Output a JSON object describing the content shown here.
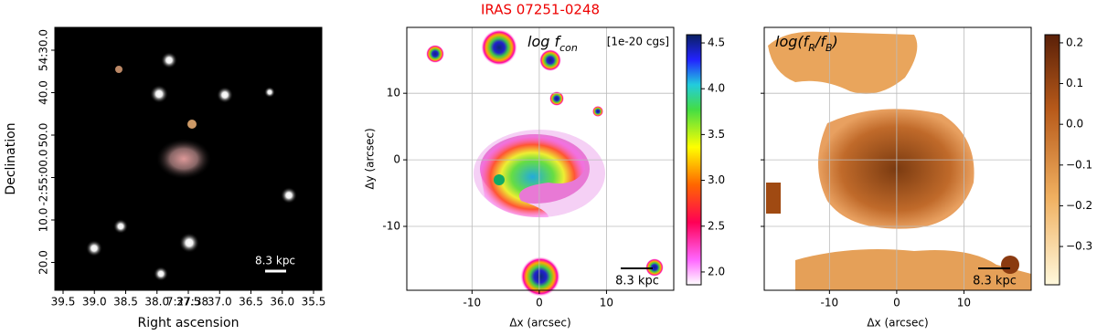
{
  "chart_data": [
    {
      "type": "image",
      "xlabel": "Right ascension",
      "ylabel": "Declination",
      "xticks": [
        "39.5",
        "39.0",
        "38.5",
        "38.0",
        "37.5",
        "37.0",
        "36.5",
        "36.0",
        "35.5"
      ],
      "xoffset_label": "7:27:38",
      "yticks": [
        "54:30.0",
        "40.0",
        "50.0",
        "-2:55:00.0",
        "10.0",
        "20.0"
      ],
      "scalebar_label": "8.3 kpc"
    },
    {
      "type": "map",
      "title": "IRAS 07251-0248",
      "xlabel": "Δx (arcsec)",
      "ylabel": "Δy (arcsec)",
      "xlim": [
        -19.7,
        20
      ],
      "ylim": [
        -19.6,
        19.9
      ],
      "xticks": [
        -10,
        0,
        10
      ],
      "yticks": [
        -10,
        0,
        10
      ],
      "grid": true,
      "annotation": "log f",
      "annotation_sub": "con",
      "unit_label": "[1e-20 cgs]",
      "scalebar_label": "8.3 kpc",
      "colormap": "gnuplot",
      "clim": [
        1.86,
        4.59
      ],
      "cticks": [
        {
          "value": 2,
          "label": "2.0"
        },
        2.5,
        {
          "value": 3,
          "label": "3.0"
        },
        3.5,
        {
          "value": 4,
          "label": "4.0"
        },
        4.5
      ]
    },
    {
      "type": "map",
      "xlabel": "Δx (arcsec)",
      "xlim": [
        -19.7,
        20
      ],
      "ylim": [
        -19.6,
        19.9
      ],
      "xticks": [
        -10,
        0,
        10
      ],
      "yticks": [
        -10,
        0,
        10
      ],
      "grid": true,
      "annotation": "log(f",
      "annotation_sub": "R",
      "annotation_mid": "/f",
      "annotation_sub2": "B",
      "annotation_end": ")",
      "scalebar_label": "8.3 kpc",
      "colormap": "copper",
      "clim": [
        -0.394,
        0.22
      ],
      "cticks": [
        0.2,
        0.1,
        {
          "value": 0,
          "label": "0.0"
        },
        {
          "value": -0.1,
          "label": "−0.1"
        },
        {
          "value": -0.2,
          "label": "−0.2"
        },
        {
          "value": -0.3,
          "label": "−0.3"
        }
      ]
    }
  ]
}
